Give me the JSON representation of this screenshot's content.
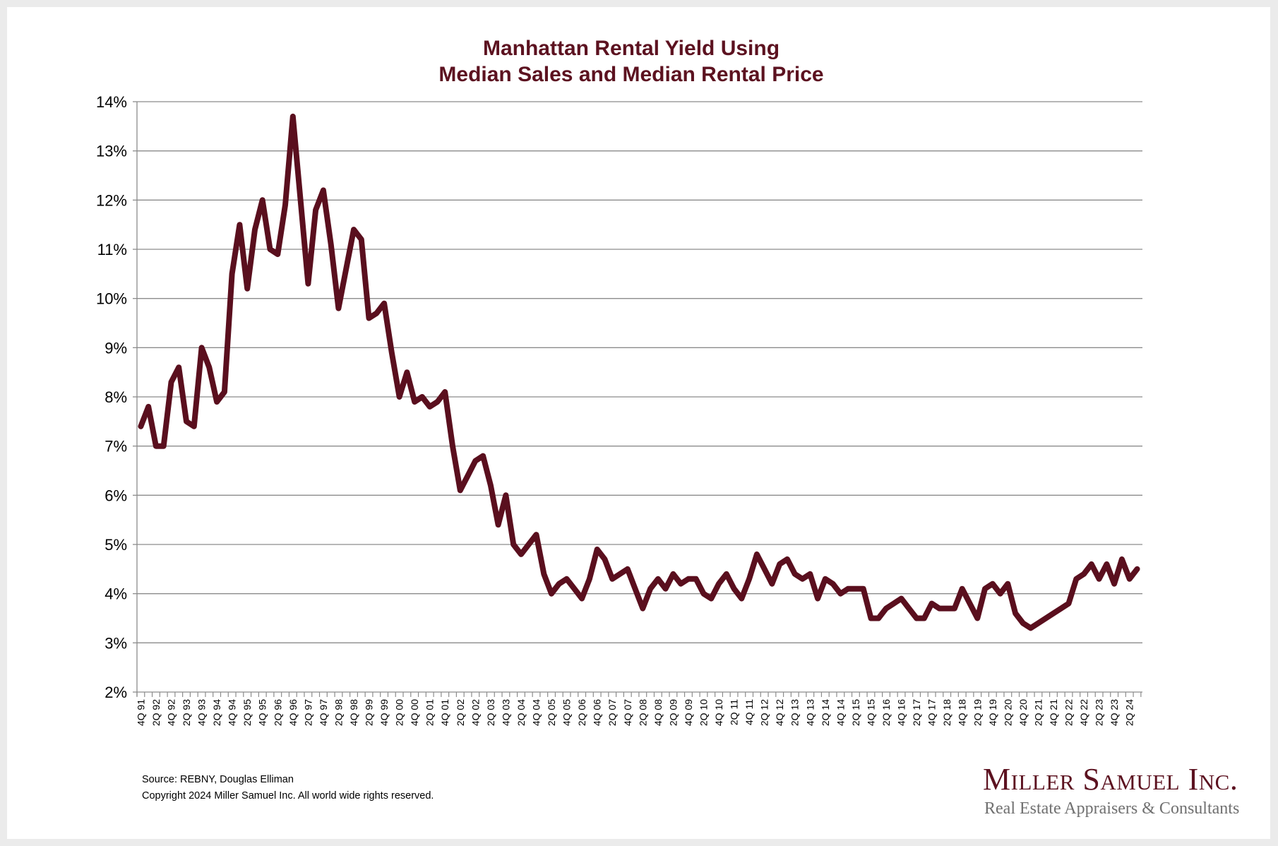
{
  "chart_data": {
    "type": "line",
    "title": "Manhattan Rental Yield Using",
    "subtitle": "Median Sales and Median Rental Price",
    "xlabel": "",
    "ylabel": "",
    "ylim": [
      2,
      14
    ],
    "y_ticks": [
      "2%",
      "3%",
      "4%",
      "5%",
      "6%",
      "7%",
      "8%",
      "9%",
      "10%",
      "11%",
      "12%",
      "13%",
      "14%"
    ],
    "grid": true,
    "legend": "none",
    "x_start": "4Q 91",
    "x_end": "3Q 24",
    "x_tick_labels": [
      "4Q 91",
      "2Q 92",
      "4Q 92",
      "2Q 93",
      "4Q 93",
      "2Q 94",
      "4Q 94",
      "2Q 95",
      "4Q 95",
      "2Q 96",
      "4Q 96",
      "2Q 97",
      "4Q 97",
      "2Q 98",
      "4Q 98",
      "2Q 99",
      "4Q 99",
      "2Q 00",
      "4Q 00",
      "2Q 01",
      "4Q 01",
      "2Q 02",
      "4Q 02",
      "2Q 03",
      "4Q 03",
      "2Q 04",
      "4Q 04",
      "2Q 05",
      "4Q 05",
      "2Q 06",
      "4Q 06",
      "2Q 07",
      "4Q 07",
      "2Q 08",
      "4Q 08",
      "2Q 09",
      "4Q 09",
      "2Q 10",
      "4Q 10",
      "2Q 11",
      "4Q 11",
      "2Q 12",
      "4Q 12",
      "2Q 13",
      "4Q 13",
      "2Q 14",
      "4Q 14",
      "2Q 15",
      "4Q 15",
      "2Q 16",
      "4Q 16",
      "2Q 17",
      "4Q 17",
      "2Q 18",
      "4Q 18",
      "2Q 19",
      "4Q 19",
      "2Q 20",
      "4Q 20",
      "2Q 21",
      "4Q 21",
      "2Q 22",
      "4Q 22",
      "2Q 23",
      "4Q 23",
      "2Q 24"
    ],
    "series": [
      {
        "name": "Rental Yield (%)",
        "color": "#5a0f1e",
        "values": [
          7.4,
          7.8,
          7.0,
          7.0,
          8.3,
          8.6,
          7.5,
          7.4,
          9.0,
          8.6,
          7.9,
          8.1,
          10.5,
          11.5,
          10.2,
          11.4,
          12.0,
          11.0,
          10.9,
          11.9,
          13.7,
          12.0,
          10.3,
          11.8,
          12.2,
          11.1,
          9.8,
          10.6,
          11.4,
          11.2,
          9.6,
          9.7,
          9.9,
          8.9,
          8.0,
          8.5,
          7.9,
          8.0,
          7.8,
          7.9,
          8.1,
          7.0,
          6.1,
          6.4,
          6.7,
          6.8,
          6.2,
          5.4,
          6.0,
          5.0,
          4.8,
          5.0,
          5.2,
          4.4,
          4.0,
          4.2,
          4.3,
          4.1,
          3.9,
          4.3,
          4.9,
          4.7,
          4.3,
          4.4,
          4.5,
          4.1,
          3.7,
          4.1,
          4.3,
          4.1,
          4.4,
          4.2,
          4.3,
          4.3,
          4.0,
          3.9,
          4.2,
          4.4,
          4.1,
          3.9,
          4.3,
          4.8,
          4.5,
          4.2,
          4.6,
          4.7,
          4.4,
          4.3,
          4.4,
          3.9,
          4.3,
          4.2,
          4.0,
          4.1,
          4.1,
          4.1,
          3.5,
          3.5,
          3.7,
          3.8,
          3.9,
          3.7,
          3.5,
          3.5,
          3.8,
          3.7,
          3.7,
          3.7,
          4.1,
          3.8,
          3.5,
          4.1,
          4.2,
          4.0,
          4.2,
          3.6,
          3.4,
          3.3,
          3.4,
          3.5,
          3.6,
          3.7,
          3.8,
          4.3,
          4.4,
          4.6,
          4.3,
          4.6,
          4.2,
          4.7,
          4.3,
          4.5
        ]
      }
    ]
  },
  "footer": {
    "source": "Source: REBNY, Douglas Elliman",
    "copyright": "Copyright 2024 Miller Samuel Inc.  All world wide rights reserved."
  },
  "logo": {
    "name": "Miller Samuel Inc.",
    "tagline": "Real Estate Appraisers & Consultants"
  }
}
